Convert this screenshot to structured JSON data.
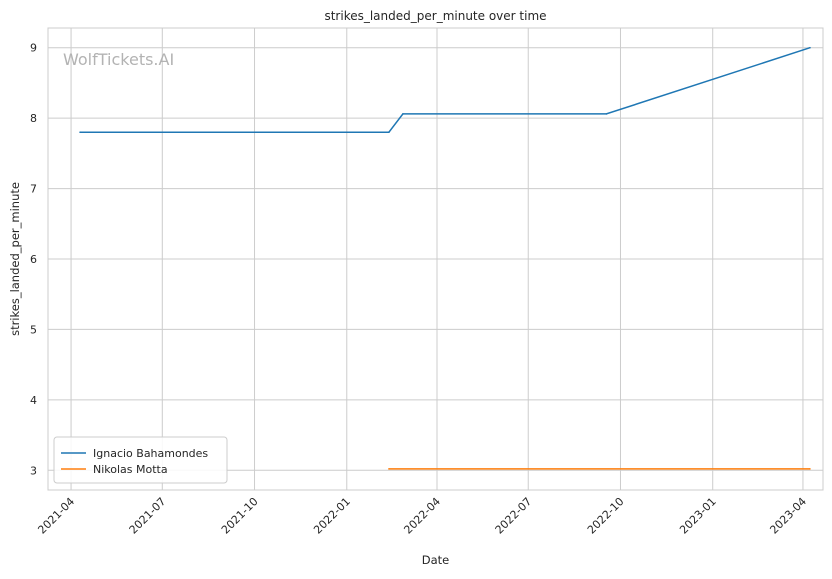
{
  "chart_data": {
    "type": "line",
    "title": "strikes_landed_per_minute over time",
    "xlabel": "Date",
    "ylabel": "strikes_landed_per_minute",
    "watermark": "WolfTickets.AI",
    "grid": true,
    "legend_position": "lower-left",
    "xlim": [
      "2021-03-09",
      "2023-04-21"
    ],
    "ylim": [
      2.72,
      9.28
    ],
    "x_ticks": [
      "2021-04",
      "2021-07",
      "2021-10",
      "2022-01",
      "2022-04",
      "2022-07",
      "2022-10",
      "2023-01",
      "2023-04"
    ],
    "y_ticks": [
      3,
      4,
      5,
      6,
      7,
      8,
      9
    ],
    "series": [
      {
        "name": "Ignacio Bahamondes",
        "color": "#1f77b4",
        "points": [
          {
            "x": "2021-04-10",
            "y": 7.8
          },
          {
            "x": "2022-02-12",
            "y": 7.8
          },
          {
            "x": "2022-02-26",
            "y": 8.06
          },
          {
            "x": "2022-09-17",
            "y": 8.06
          },
          {
            "x": "2023-04-08",
            "y": 9.0
          }
        ]
      },
      {
        "name": "Nikolas Motta",
        "color": "#ff7f0e",
        "points": [
          {
            "x": "2022-02-12",
            "y": 3.02
          },
          {
            "x": "2023-04-08",
            "y": 3.02
          }
        ]
      }
    ]
  }
}
